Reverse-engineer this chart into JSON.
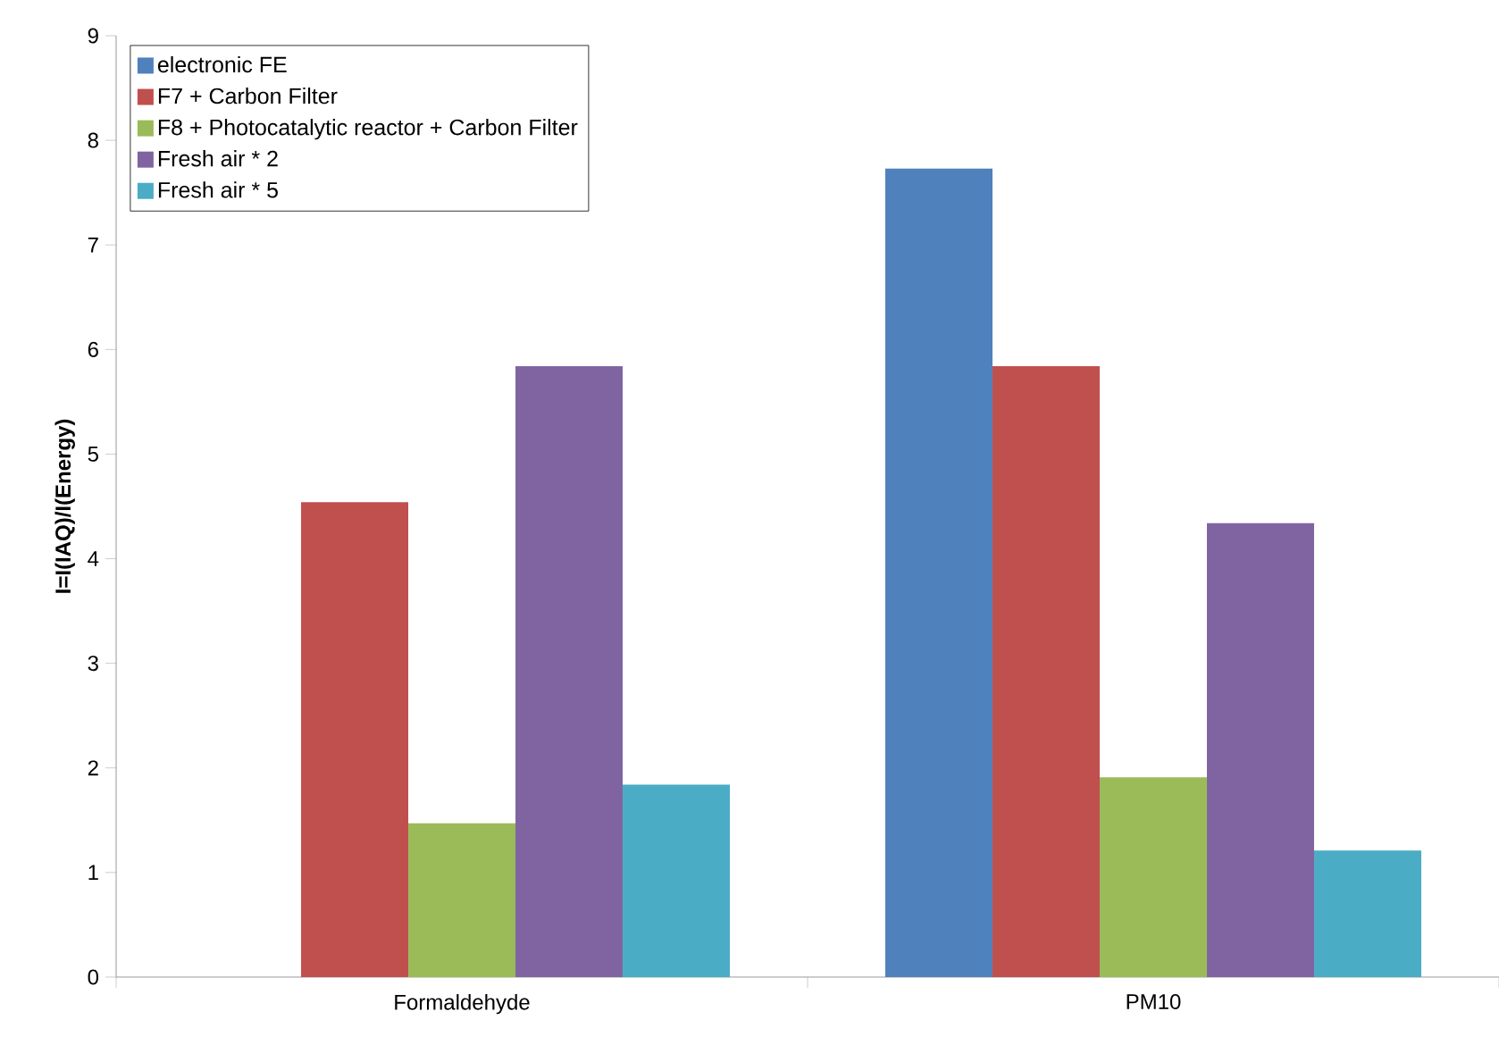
{
  "chart_data": {
    "type": "bar",
    "ylabel": "I=I(IAQ)/I(Energy)",
    "categories": [
      "Formaldehyde",
      "PM10"
    ],
    "series": [
      {
        "name": "electronic FE",
        "color": "#4f81bd",
        "values": [
          null,
          7.73
        ]
      },
      {
        "name": "F7 + Carbon Filter",
        "color": "#c0504d",
        "values": [
          4.54,
          5.84
        ]
      },
      {
        "name": "F8 + Photocatalytic reactor + Carbon Filter",
        "color": "#9bbb59",
        "values": [
          1.47,
          1.91
        ]
      },
      {
        "name": "Fresh air * 2",
        "color": "#8064a2",
        "values": [
          5.84,
          4.34
        ]
      },
      {
        "name": "Fresh air * 5",
        "color": "#4bacc6",
        "values": [
          1.84,
          1.21
        ]
      }
    ],
    "ylim": [
      0,
      9
    ],
    "yticks": [
      0,
      1,
      2,
      3,
      4,
      5,
      6,
      7,
      8,
      9
    ],
    "grid": false,
    "legend": "top left"
  }
}
